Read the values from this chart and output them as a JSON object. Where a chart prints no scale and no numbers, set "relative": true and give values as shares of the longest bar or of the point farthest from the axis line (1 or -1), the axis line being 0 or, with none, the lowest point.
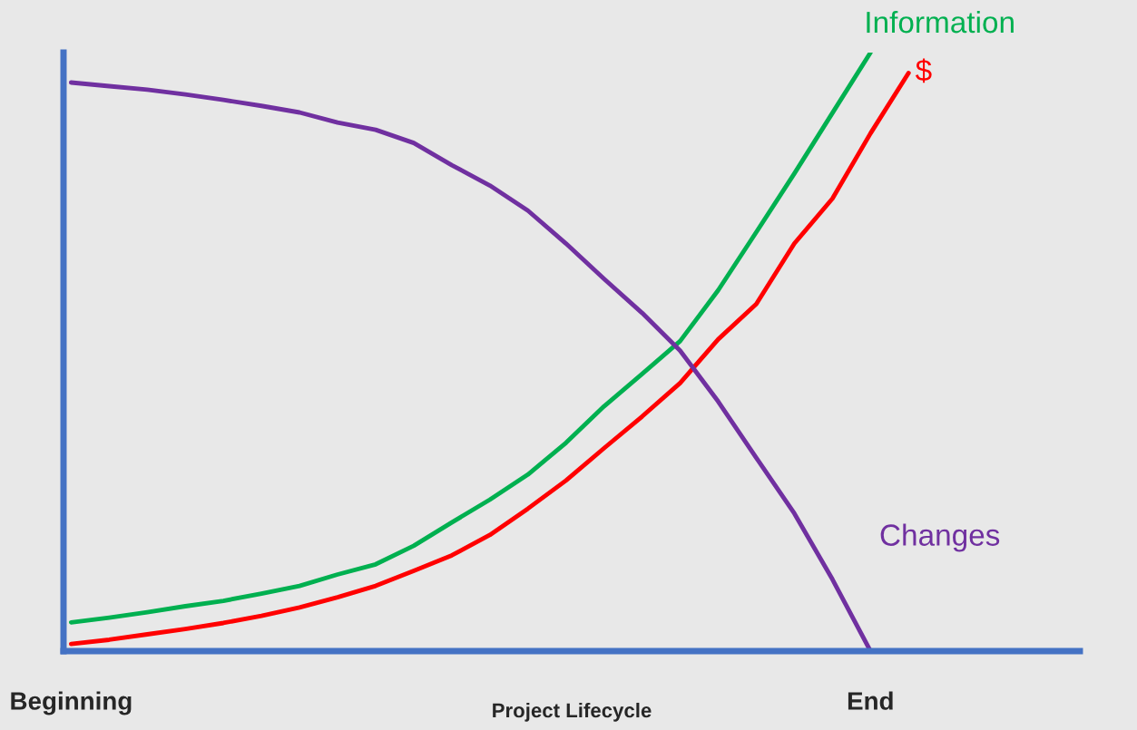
{
  "chart_data": {
    "type": "line",
    "relative": true,
    "xlabel": "Project Lifecycle",
    "categories": [
      "Beginning",
      null,
      null,
      null,
      null,
      null,
      null,
      null,
      null,
      null,
      null,
      null,
      null,
      null,
      null,
      null,
      null,
      null,
      null,
      null,
      null,
      "End",
      null
    ],
    "tick_labels": "x",
    "grid": false,
    "legend": false,
    "marker": "none",
    "line_style": "solid",
    "series": [
      {
        "name": "Information",
        "color": "#00b050",
        "values": [
          0.048,
          0.056,
          0.065,
          0.075,
          0.084,
          0.096,
          0.109,
          0.128,
          0.145,
          0.176,
          0.215,
          0.253,
          0.295,
          0.348,
          0.409,
          0.463,
          0.518,
          0.603,
          0.7,
          0.798,
          0.899,
          1.0,
          null
        ]
      },
      {
        "name": "$",
        "color": "#ff0000",
        "values": [
          0.012,
          0.019,
          0.028,
          0.037,
          0.047,
          0.059,
          0.073,
          0.09,
          0.109,
          0.134,
          0.16,
          0.194,
          0.238,
          0.285,
          0.339,
          0.392,
          0.448,
          0.521,
          0.58,
          0.681,
          0.756,
          0.865,
          0.966
        ]
      },
      {
        "name": "Changes",
        "color": "#7030a0",
        "values": [
          0.95,
          0.944,
          0.938,
          0.93,
          0.921,
          0.911,
          0.9,
          0.883,
          0.871,
          0.849,
          0.812,
          0.778,
          0.736,
          0.681,
          0.622,
          0.565,
          0.502,
          0.417,
          0.323,
          0.23,
          0.12,
          0.0,
          null
        ]
      }
    ]
  }
}
